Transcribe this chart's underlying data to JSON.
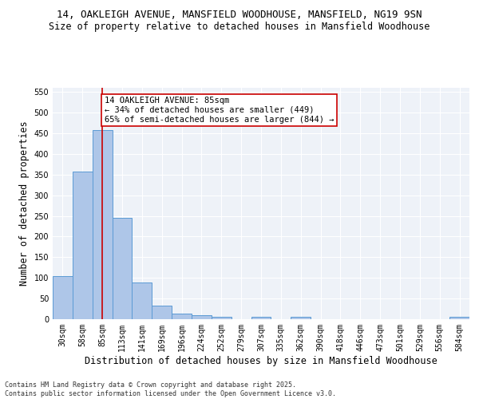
{
  "title1": "14, OAKLEIGH AVENUE, MANSFIELD WOODHOUSE, MANSFIELD, NG19 9SN",
  "title2": "Size of property relative to detached houses in Mansfield Woodhouse",
  "xlabel": "Distribution of detached houses by size in Mansfield Woodhouse",
  "ylabel": "Number of detached properties",
  "categories": [
    "30sqm",
    "58sqm",
    "85sqm",
    "113sqm",
    "141sqm",
    "169sqm",
    "196sqm",
    "224sqm",
    "252sqm",
    "279sqm",
    "307sqm",
    "335sqm",
    "362sqm",
    "390sqm",
    "418sqm",
    "446sqm",
    "473sqm",
    "501sqm",
    "529sqm",
    "556sqm",
    "584sqm"
  ],
  "values": [
    105,
    358,
    457,
    246,
    88,
    32,
    14,
    9,
    5,
    0,
    5,
    0,
    5,
    0,
    0,
    0,
    0,
    0,
    0,
    0,
    5
  ],
  "bar_color": "#aec6e8",
  "bar_edge_color": "#5b9bd5",
  "vline_color": "#cc0000",
  "vline_x_index": 2,
  "annotation_text": "14 OAKLEIGH AVENUE: 85sqm\n← 34% of detached houses are smaller (449)\n65% of semi-detached houses are larger (844) →",
  "annotation_box_color": "#cc0000",
  "footer": "Contains HM Land Registry data © Crown copyright and database right 2025.\nContains public sector information licensed under the Open Government Licence v3.0.",
  "ylim": [
    0,
    560
  ],
  "yticks": [
    0,
    50,
    100,
    150,
    200,
    250,
    300,
    350,
    400,
    450,
    500,
    550
  ],
  "bg_color": "#eef2f8",
  "grid_color": "#ffffff",
  "title1_fontsize": 9,
  "title2_fontsize": 8.5,
  "xlabel_fontsize": 8.5,
  "ylabel_fontsize": 8.5,
  "tick_fontsize": 7,
  "footer_fontsize": 6,
  "annot_fontsize": 7.5
}
